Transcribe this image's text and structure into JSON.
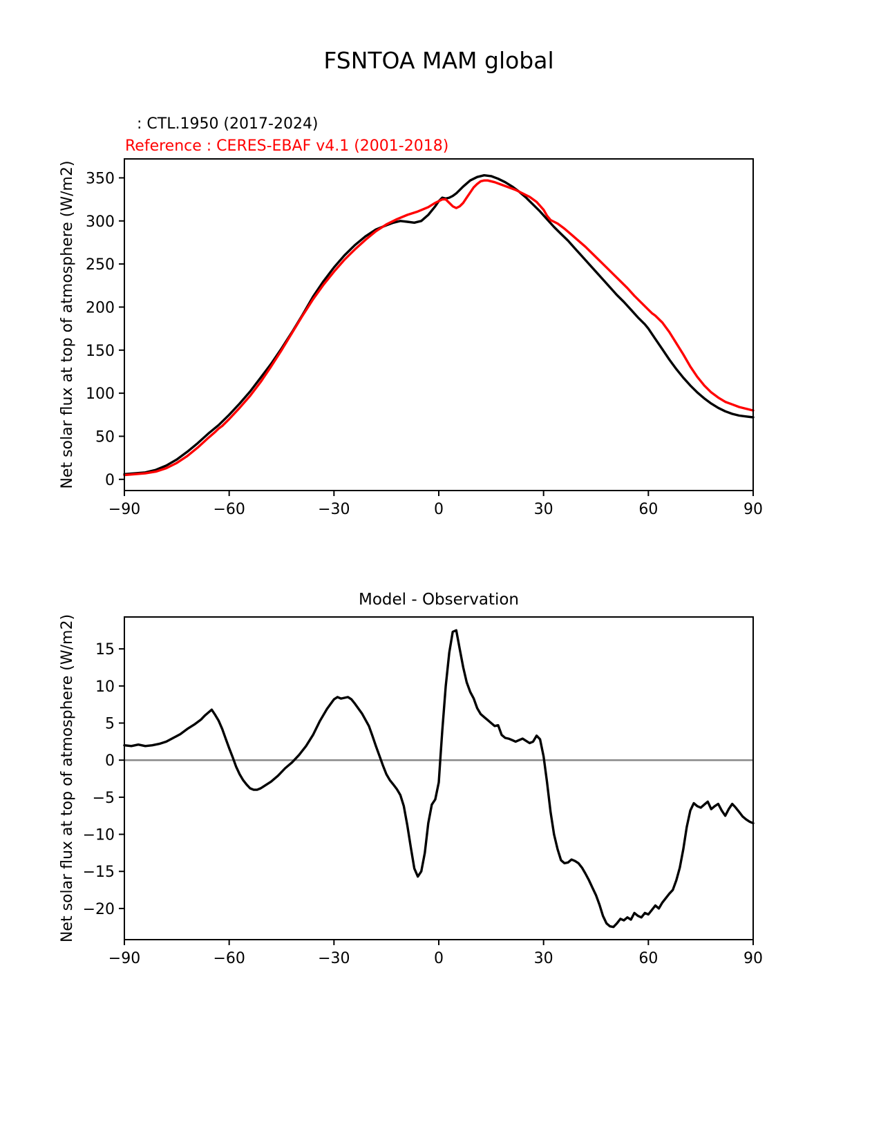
{
  "chart_data": [
    {
      "type": "line",
      "title": "FSNTOA MAM global",
      "xlabel": "",
      "ylabel": "Net solar flux at top of atmosphere (W/m2)",
      "xlim": [
        -90,
        90
      ],
      "ylim": [
        -13,
        372
      ],
      "xticks": [
        -90,
        -60,
        -30,
        0,
        30,
        60,
        90
      ],
      "yticks": [
        0,
        50,
        100,
        150,
        200,
        250,
        300,
        350
      ],
      "grid": false,
      "legend_position": "above-left",
      "legend": [
        {
          "label": ": CTL.1950 (2017-2024)",
          "color": "#000000"
        },
        {
          "label": "Reference : CERES-EBAF v4.1 (2001-2018)",
          "color": "#ff0000"
        }
      ],
      "series": [
        {
          "name": "CTL.1950 (2017-2024)",
          "color": "#000000",
          "x": [
            -90,
            -87,
            -84,
            -81,
            -78,
            -75,
            -72,
            -69,
            -66,
            -63,
            -60,
            -57,
            -54,
            -51,
            -48,
            -45,
            -42,
            -39,
            -36,
            -33,
            -30,
            -27,
            -24,
            -21,
            -18,
            -15,
            -13,
            -11,
            -9,
            -7,
            -5,
            -3,
            -1,
            0,
            1,
            2,
            3,
            4,
            5,
            7,
            9,
            11,
            13,
            15,
            17,
            19,
            21,
            23,
            25,
            27,
            29,
            31,
            33,
            35,
            37,
            39,
            41,
            43,
            45,
            47,
            49,
            51,
            53,
            55,
            57,
            59,
            60,
            62,
            64,
            66,
            68,
            70,
            72,
            74,
            76,
            78,
            80,
            82,
            84,
            86,
            88,
            90
          ],
          "y": [
            6,
            7,
            8,
            11,
            16,
            23,
            32,
            42,
            53,
            63,
            75,
            88,
            102,
            118,
            134,
            152,
            171,
            191,
            212,
            230,
            246,
            260,
            272,
            282,
            290,
            295,
            298,
            300,
            299,
            298,
            300,
            307,
            317,
            323,
            327,
            326,
            327,
            329,
            332,
            340,
            347,
            351,
            353,
            352,
            349,
            345,
            340,
            334,
            327,
            319,
            311,
            302,
            293,
            285,
            277,
            268,
            259,
            250,
            241,
            232,
            223,
            214,
            206,
            197,
            188,
            180,
            175,
            163,
            151,
            139,
            128,
            118,
            109,
            101,
            94,
            88,
            83,
            79,
            76,
            74,
            73,
            72
          ]
        },
        {
          "name": "CERES-EBAF v4.1 (2001-2018)",
          "color": "#ff0000",
          "x": [
            -90,
            -87,
            -84,
            -81,
            -78,
            -75,
            -72,
            -69,
            -66,
            -64,
            -63,
            -62,
            -60,
            -57,
            -54,
            -51,
            -48,
            -45,
            -42,
            -39,
            -36,
            -33,
            -30,
            -27,
            -24,
            -21,
            -18,
            -15,
            -12,
            -9,
            -6,
            -3,
            -1,
            0,
            1,
            2,
            3,
            4,
            5,
            6,
            7,
            8,
            9,
            10,
            11,
            12,
            13,
            14,
            16,
            18,
            20,
            22,
            24,
            26,
            28,
            30,
            31,
            32,
            33,
            34,
            36,
            38,
            40,
            42,
            44,
            46,
            48,
            50,
            52,
            54,
            56,
            58,
            60,
            61,
            62,
            64,
            66,
            68,
            70,
            72,
            74,
            76,
            78,
            80,
            82,
            84,
            86,
            88,
            90
          ],
          "y": [
            5,
            6,
            7,
            9,
            13,
            19,
            27,
            37,
            48,
            55,
            59,
            62,
            70,
            83,
            97,
            113,
            131,
            150,
            170,
            190,
            209,
            226,
            241,
            255,
            267,
            278,
            288,
            296,
            302,
            307,
            311,
            316,
            321,
            323,
            325,
            325,
            321,
            317,
            315,
            317,
            321,
            327,
            333,
            339,
            343,
            346,
            347,
            347,
            345,
            342,
            339,
            336,
            332,
            328,
            322,
            313,
            306,
            301,
            299,
            297,
            291,
            284,
            277,
            270,
            262,
            254,
            246,
            238,
            230,
            222,
            213,
            205,
            197,
            193,
            190,
            182,
            171,
            158,
            145,
            131,
            119,
            109,
            101,
            95,
            90,
            87,
            84,
            82,
            80
          ]
        }
      ]
    },
    {
      "type": "line",
      "title": "Model - Observation",
      "xlabel": "",
      "ylabel": "Net solar flux at top of atmosphere (W/m2)",
      "xlim": [
        -90,
        90
      ],
      "ylim": [
        -24.2,
        19.3
      ],
      "xticks": [
        -90,
        -60,
        -30,
        0,
        30,
        60,
        90
      ],
      "yticks": [
        -20,
        -15,
        -10,
        -5,
        0,
        5,
        10,
        15
      ],
      "grid": false,
      "zero_line": true,
      "zero_line_color": "#888888",
      "series": [
        {
          "name": "Model - Observation",
          "color": "#000000",
          "x": [
            -90,
            -88,
            -86,
            -84,
            -82,
            -80,
            -78,
            -76,
            -74,
            -72,
            -70,
            -68,
            -67,
            -66,
            -65,
            -64,
            -63,
            -62,
            -61,
            -60,
            -59,
            -58,
            -57,
            -56,
            -55,
            -54,
            -53,
            -52,
            -51,
            -50,
            -48,
            -46,
            -44,
            -42,
            -40,
            -38,
            -36,
            -34,
            -32,
            -30,
            -29,
            -28,
            -26,
            -25,
            -24,
            -22,
            -20,
            -19,
            -18,
            -17,
            -16,
            -15,
            -14,
            -13,
            -12,
            -11,
            -10,
            -9,
            -8,
            -7,
            -6,
            -5,
            -4,
            -3,
            -2,
            -1,
            0,
            0.5,
            1,
            2,
            3,
            4,
            5,
            6,
            7,
            8,
            9,
            10,
            11,
            12,
            13,
            14,
            15,
            16,
            17,
            18,
            19,
            20,
            21,
            22,
            23,
            24,
            25,
            26,
            27,
            28,
            29,
            30,
            31,
            32,
            33,
            34,
            35,
            36,
            37,
            38,
            39,
            40,
            41,
            42,
            43,
            44,
            45,
            46,
            47,
            48,
            49,
            50,
            51,
            52,
            53,
            54,
            55,
            56,
            57,
            58,
            59,
            60,
            61,
            62,
            63,
            64,
            65,
            66,
            67,
            68,
            69,
            70,
            71,
            72,
            73,
            74,
            75,
            76,
            77,
            78,
            79,
            80,
            81,
            82,
            83,
            84,
            85,
            86,
            87,
            88,
            89,
            90
          ],
          "y": [
            2.0,
            1.9,
            2.1,
            1.9,
            2.0,
            2.2,
            2.5,
            3.0,
            3.5,
            4.2,
            4.8,
            5.5,
            6.0,
            6.4,
            6.8,
            6.1,
            5.3,
            4.2,
            2.9,
            1.6,
            0.4,
            -0.9,
            -1.9,
            -2.7,
            -3.3,
            -3.8,
            -4.0,
            -4.0,
            -3.8,
            -3.5,
            -2.9,
            -2.1,
            -1.1,
            -0.3,
            0.7,
            1.9,
            3.4,
            5.3,
            6.9,
            8.2,
            8.5,
            8.3,
            8.5,
            8.2,
            7.6,
            6.3,
            4.6,
            3.3,
            1.9,
            0.6,
            -0.7,
            -1.9,
            -2.7,
            -3.3,
            -3.9,
            -4.7,
            -6.2,
            -8.8,
            -11.8,
            -14.6,
            -15.7,
            -15.0,
            -12.5,
            -8.5,
            -6.0,
            -5.3,
            -3.0,
            0.5,
            4.0,
            10.0,
            14.5,
            17.3,
            17.5,
            15.0,
            12.5,
            10.5,
            9.2,
            8.3,
            7.0,
            6.2,
            5.8,
            5.4,
            5.0,
            4.6,
            4.7,
            3.4,
            3.0,
            2.9,
            2.7,
            2.5,
            2.7,
            2.9,
            2.6,
            2.3,
            2.5,
            3.3,
            2.8,
            0.5,
            -3.0,
            -7.0,
            -10.0,
            -12.0,
            -13.5,
            -13.9,
            -13.8,
            -13.4,
            -13.6,
            -13.9,
            -14.5,
            -15.3,
            -16.2,
            -17.2,
            -18.2,
            -19.5,
            -21.0,
            -22.0,
            -22.4,
            -22.5,
            -22.0,
            -21.4,
            -21.6,
            -21.2,
            -21.5,
            -20.6,
            -21.0,
            -21.2,
            -20.6,
            -20.8,
            -20.2,
            -19.6,
            -20.0,
            -19.2,
            -18.6,
            -18.0,
            -17.5,
            -16.2,
            -14.5,
            -12.0,
            -9.0,
            -6.8,
            -5.8,
            -6.2,
            -6.4,
            -6.0,
            -5.6,
            -6.6,
            -6.2,
            -5.9,
            -6.8,
            -7.5,
            -6.6,
            -5.9,
            -6.4,
            -7.0,
            -7.6,
            -8.0,
            -8.3,
            -8.5
          ]
        }
      ]
    }
  ]
}
